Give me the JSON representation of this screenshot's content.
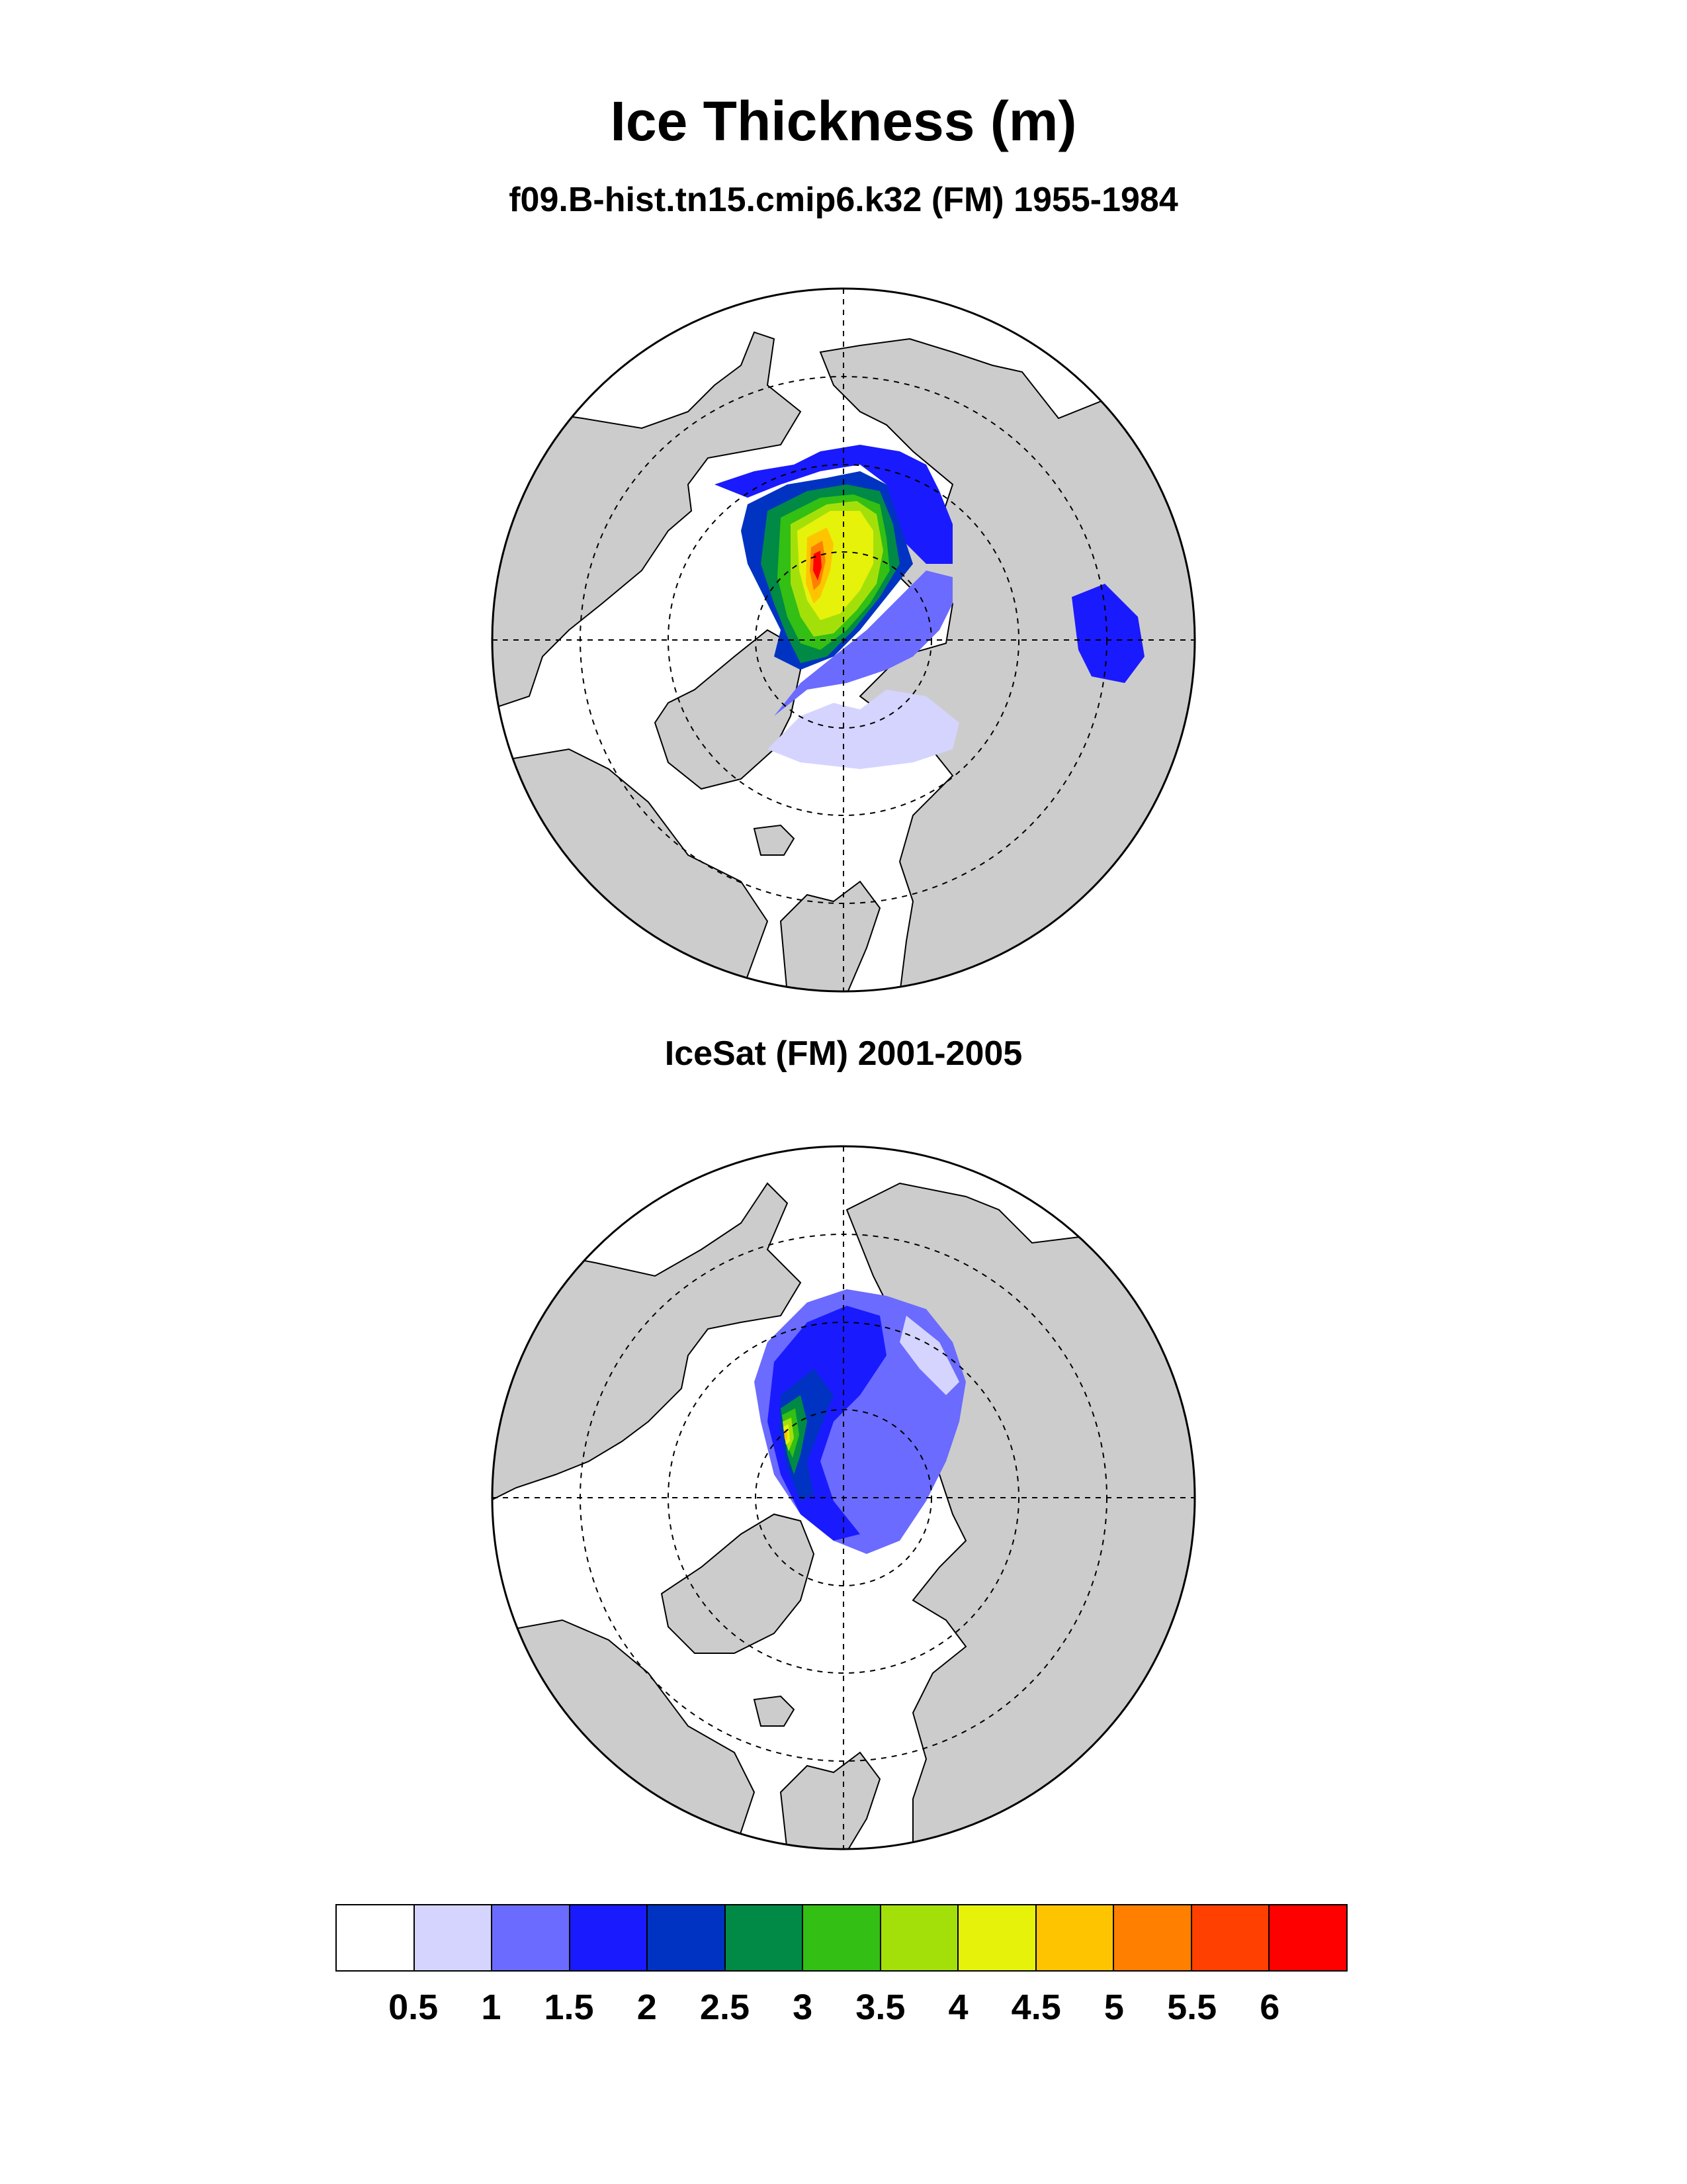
{
  "title": "Ice Thickness (m)",
  "panels": [
    {
      "subtitle": "f09.B-hist.tn15.cmip6.k32 (FM) 1955-1984"
    },
    {
      "subtitle": "IceSat (FM) 2001-2005"
    }
  ],
  "colorbar": {
    "colors": [
      "#ffffff",
      "#d4d4ff",
      "#6b6bff",
      "#1a1aff",
      "#0033c2",
      "#008a45",
      "#33bf14",
      "#a3e00a",
      "#e6f20a",
      "#ffc400",
      "#ff7f00",
      "#ff4000",
      "#ff0000"
    ],
    "labels": [
      "0.5",
      "1",
      "1.5",
      "2",
      "2.5",
      "3",
      "3.5",
      "4",
      "4.5",
      "5",
      "5.5",
      "6"
    ]
  },
  "colors": {
    "land": "#cccccc",
    "background": "#ffffff"
  }
}
